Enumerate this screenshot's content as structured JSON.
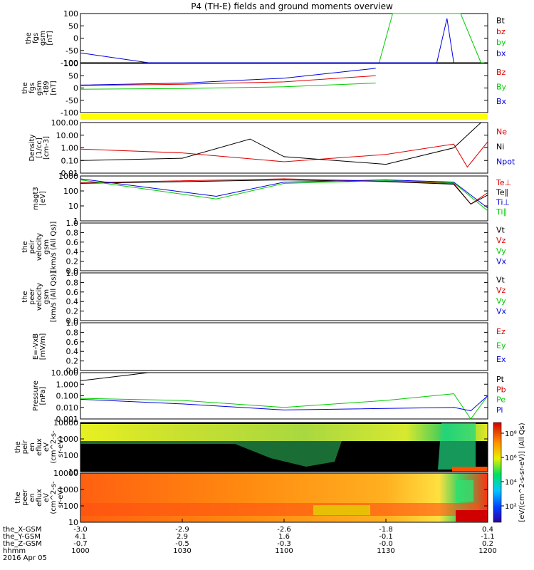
{
  "title": "P4 (TH-E) fields and ground moments overview",
  "colors": {
    "black": "#000000",
    "red": "#dd0000",
    "green": "#00cc00",
    "blue": "#0000dd",
    "yellow": "#ffff00"
  },
  "panels": [
    {
      "id": "fgs",
      "ylabel": [
        "the",
        "fgs",
        "gsm",
        "[nT]"
      ],
      "ticks": [
        "100",
        "50",
        "0",
        "-50",
        "-100"
      ],
      "legend": [
        {
          "text": "Bt",
          "color": "black"
        },
        {
          "text": "bz",
          "color": "red"
        },
        {
          "text": "by",
          "color": "green"
        },
        {
          "text": "bx",
          "color": "blue"
        }
      ]
    },
    {
      "id": "fgs_t89",
      "ylabel": [
        "the",
        "fgs",
        "gsm",
        "-t89",
        "[nT]"
      ],
      "ticks": [
        "100",
        "50",
        "0",
        "-50",
        "-100"
      ],
      "legend": [
        {
          "text": "Bz",
          "color": "red"
        },
        {
          "text": "By",
          "color": "green"
        },
        {
          "text": "Bx",
          "color": "blue"
        }
      ]
    },
    {
      "id": "density",
      "ylabel": [
        "Density",
        "[1/cc]",
        "[cm-3]"
      ],
      "ticks": [
        "100.00",
        "10.00",
        "1.00",
        "0.10",
        "0.01"
      ],
      "legend": [
        {
          "text": "Ne",
          "color": "red"
        },
        {
          "text": "Ni",
          "color": "black"
        },
        {
          "text": "Npot",
          "color": "blue"
        }
      ]
    },
    {
      "id": "temp",
      "ylabel": [
        "magt3",
        "[eV]"
      ],
      "ticks": [
        "1000",
        "100",
        "10",
        "1"
      ],
      "legend": [
        {
          "text": "Te⊥",
          "color": "red"
        },
        {
          "text": "Te∥",
          "color": "black"
        },
        {
          "text": "Ti⊥",
          "color": "blue"
        },
        {
          "text": "Ti∥",
          "color": "green"
        }
      ]
    },
    {
      "id": "peir_vel",
      "ylabel": [
        "the",
        "peir",
        "velocity",
        "gsm",
        "[km/s (All Qs)]"
      ],
      "ticks": [
        "1.0",
        "0.8",
        "0.6",
        "0.4",
        "0.2",
        "0.0"
      ],
      "legend": [
        {
          "text": "Vt",
          "color": "black"
        },
        {
          "text": "Vz",
          "color": "red"
        },
        {
          "text": "Vy",
          "color": "green"
        },
        {
          "text": "Vx",
          "color": "blue"
        }
      ]
    },
    {
      "id": "peer_vel",
      "ylabel": [
        "the",
        "peer",
        "velocity",
        "gsm",
        "[km/s (All Qs)]"
      ],
      "ticks": [
        "1.0",
        "0.8",
        "0.6",
        "0.4",
        "0.2",
        "0.0"
      ],
      "legend": [
        {
          "text": "Vt",
          "color": "black"
        },
        {
          "text": "Vz",
          "color": "red"
        },
        {
          "text": "Vy",
          "color": "green"
        },
        {
          "text": "Vx",
          "color": "blue"
        }
      ]
    },
    {
      "id": "efield",
      "ylabel": [
        "E=-VxB",
        "[mV/m]"
      ],
      "ticks": [
        "1.0",
        "0.8",
        "0.6",
        "0.4",
        "0.2",
        "0.0"
      ],
      "legend": [
        {
          "text": "Ez",
          "color": "red"
        },
        {
          "text": "Ey",
          "color": "green"
        },
        {
          "text": "Ex",
          "color": "blue"
        }
      ]
    },
    {
      "id": "pressure",
      "ylabel": [
        "Pressure",
        "[nPa]"
      ],
      "ticks": [
        "10.000",
        "1.000",
        "0.100",
        "0.010",
        "0.001"
      ],
      "legend": [
        {
          "text": "Pt",
          "color": "black"
        },
        {
          "text": "Pb",
          "color": "red"
        },
        {
          "text": "Pe",
          "color": "green"
        },
        {
          "text": "Pi",
          "color": "blue"
        }
      ]
    },
    {
      "id": "peir_flux",
      "ylabel": [
        "the",
        "peir",
        "en",
        "eflux",
        "eV",
        "(cm^2-s-",
        "sr-eV)"
      ],
      "ticks": [
        "10000",
        "1000",
        "100",
        "10"
      ]
    },
    {
      "id": "peer_flux",
      "ylabel": [
        "the",
        "peer",
        "en",
        "eflux",
        "eV",
        "(cm^2-s-",
        "sr-eV)"
      ],
      "ticks": [
        "10000",
        "1000",
        "100",
        "10"
      ]
    }
  ],
  "colorbar": {
    "label": "[eV/(cm^2-s-sr-eV)] (All Qs)",
    "ticks": [
      "10⁸",
      "10⁶",
      "10⁴",
      "10²"
    ]
  },
  "xaxis": {
    "row_labels": [
      "the_X-GSM",
      "the_Y-GSM",
      "the_Z-GSM",
      "hhmm"
    ],
    "columns": [
      [
        "-3.0",
        "4.1",
        "-0.7",
        "1000"
      ],
      [
        "-2.9",
        "2.9",
        "-0.5",
        "1030"
      ],
      [
        "-2.6",
        "1.6",
        "-0.3",
        "1100"
      ],
      [
        "-1.8",
        "-0.1",
        "-0.0",
        "1130"
      ],
      [
        "0.4",
        "-1.1",
        "0.2",
        "1200"
      ]
    ],
    "date": "2016 Apr 05"
  },
  "chart_data": {
    "type": "line",
    "title": "P4 (TH-E) fields and ground moments overview",
    "x_axis": "hhmm",
    "x_ticks": [
      "1000",
      "1030",
      "1100",
      "1130",
      "1200"
    ],
    "x_range": [
      "1000",
      "1200"
    ],
    "date": "2016 Apr 05",
    "panels": [
      {
        "name": "the fgs gsm [nT]",
        "ylim": [
          -100,
          100
        ],
        "series": [
          {
            "name": "Bt",
            "x": [],
            "y": []
          },
          {
            "name": "bz",
            "x": [],
            "y": []
          },
          {
            "name": "by",
            "x": [
              "1128",
              "1132",
              "1152",
              "1158",
              "1159"
            ],
            "y": [
              -100,
              100,
              100,
              -100,
              -100
            ]
          },
          {
            "name": "bx",
            "x": [
              "1000",
              "1020",
              "1145",
              "1148",
              "1150"
            ],
            "y": [
              -60,
              -100,
              -100,
              80,
              -100
            ]
          }
        ]
      },
      {
        "name": "the fgs gsm -t89 [nT]",
        "ylim": [
          -100,
          100
        ],
        "series": [
          {
            "name": "Bz",
            "x": [
              "1000",
              "1030",
              "1100",
              "1127"
            ],
            "y": [
              10,
              15,
              25,
              50
            ]
          },
          {
            "name": "By",
            "x": [
              "1000",
              "1030",
              "1100",
              "1127"
            ],
            "y": [
              -5,
              -2,
              5,
              20
            ]
          },
          {
            "name": "Bx",
            "x": [
              "1000",
              "1030",
              "1100",
              "1127"
            ],
            "y": [
              12,
              20,
              40,
              80
            ]
          }
        ]
      },
      {
        "name": "Density [1/cc] [cm-3]",
        "scale": "log",
        "ylim": [
          0.01,
          100
        ],
        "series": [
          {
            "name": "Ne",
            "x": [
              "1000",
              "1030",
              "1100",
              "1130",
              "1150",
              "1154",
              "1200"
            ],
            "y": [
              0.8,
              0.4,
              0.08,
              0.3,
              2.0,
              0.03,
              3
            ]
          },
          {
            "name": "Ni",
            "x": [
              "1000",
              "1030",
              "1050",
              "1100",
              "1130",
              "1150",
              "1158"
            ],
            "y": [
              0.1,
              0.15,
              5,
              0.2,
              0.05,
              1.0,
              100
            ]
          },
          {
            "name": "Npot",
            "x": [],
            "y": []
          }
        ]
      },
      {
        "name": "magt3 [eV]",
        "scale": "log",
        "ylim": [
          1,
          3000
        ],
        "series": [
          {
            "name": "Te⊥",
            "x": [
              "1000",
              "1100",
              "1130",
              "1150",
              "1155",
              "1200"
            ],
            "y": [
              900,
              1800,
              1200,
              800,
              20,
              150
            ]
          },
          {
            "name": "Te∥",
            "x": [
              "1000",
              "1100",
              "1130",
              "1150",
              "1155",
              "1200"
            ],
            "y": [
              800,
              1500,
              1100,
              700,
              20,
              100
            ]
          },
          {
            "name": "Ti⊥",
            "x": [
              "1000",
              "1040",
              "1100",
              "1130",
              "1150",
              "1200"
            ],
            "y": [
              1800,
              80,
              1000,
              1500,
              1000,
              10
            ]
          },
          {
            "name": "Ti∥",
            "x": [
              "1000",
              "1040",
              "1100",
              "1130",
              "1150",
              "1200"
            ],
            "y": [
              1500,
              50,
              800,
              1300,
              900,
              6
            ]
          }
        ]
      },
      {
        "name": "Pressure [nPa]",
        "scale": "log",
        "ylim": [
          0.001,
          10
        ],
        "series": [
          {
            "name": "Pt",
            "x": [
              "1000",
              "1020"
            ],
            "y": [
              2,
              10
            ]
          },
          {
            "name": "Pb",
            "x": [],
            "y": []
          },
          {
            "name": "Pe",
            "x": [
              "1000",
              "1030",
              "1100",
              "1130",
              "1150",
              "1155",
              "1200"
            ],
            "y": [
              0.06,
              0.04,
              0.01,
              0.04,
              0.15,
              0.001,
              0.1
            ]
          },
          {
            "name": "Pi",
            "x": [
              "1000",
              "1030",
              "1100",
              "1150",
              "1155",
              "1200"
            ],
            "y": [
              0.05,
              0.02,
              0.006,
              0.01,
              0.005,
              0.1
            ]
          }
        ]
      }
    ]
  }
}
